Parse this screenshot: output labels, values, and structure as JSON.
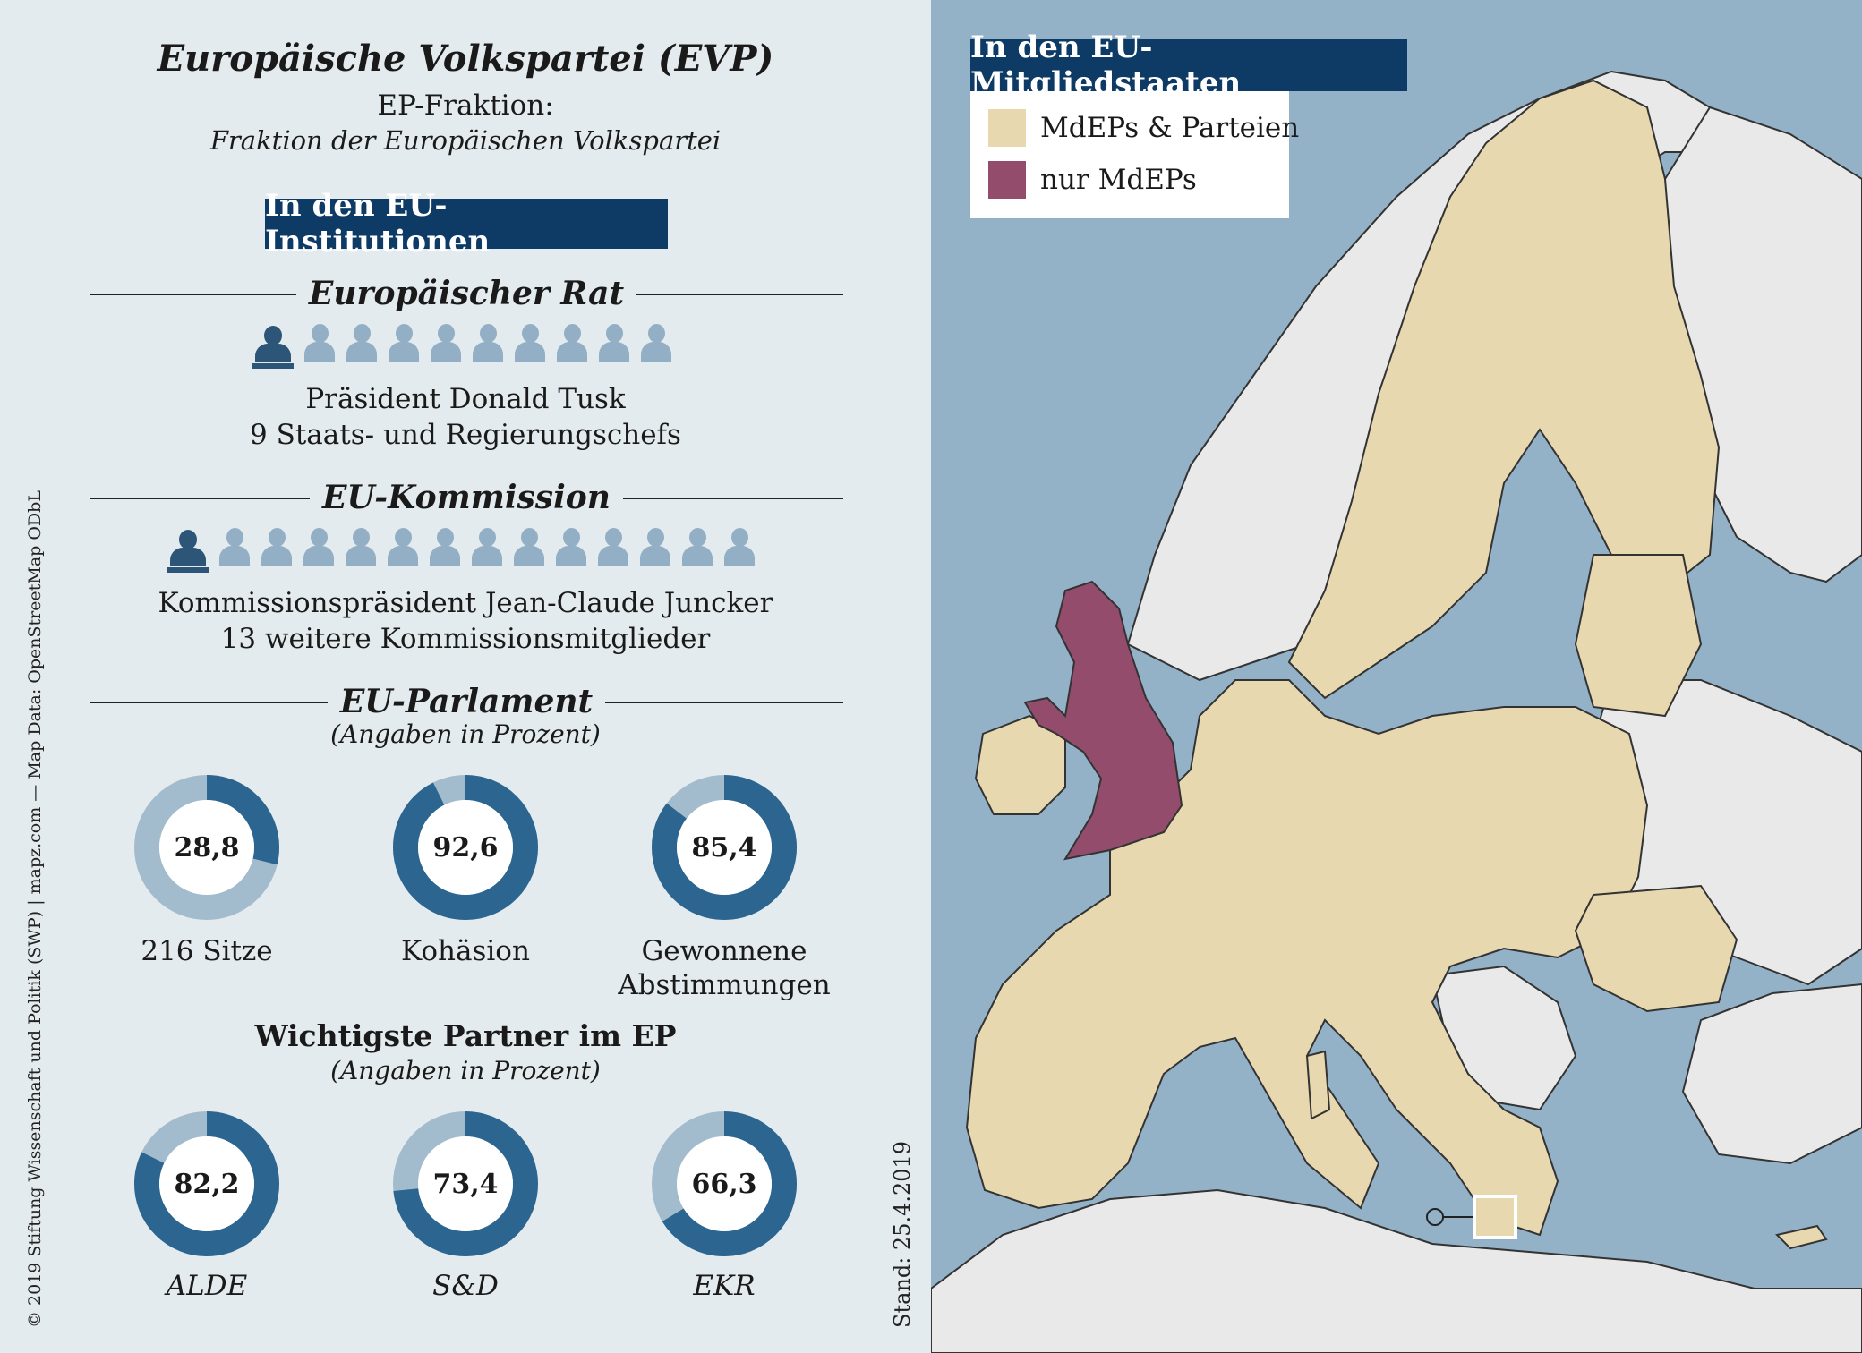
{
  "header": {
    "title": "Europäische Volkspartei (EVP)",
    "fraktion_label": "EP-Fraktion:",
    "fraktion_name": "Fraktion der Europäischen Volkspartei"
  },
  "institutions": {
    "box_label": "In den EU-Institutionen",
    "rat": {
      "heading": "Europäischer Rat",
      "line1": "Präsident Donald Tusk",
      "line2": "9 Staats- und Regierungschefs",
      "main_count": 1,
      "other_count": 9
    },
    "kommission": {
      "heading": "EU-Kommission",
      "line1": "Kommissionspräsident Jean-Claude Juncker",
      "line2": "13 weitere Kommissionsmitglieder",
      "main_count": 1,
      "other_count": 13
    },
    "parlament": {
      "heading": "EU-Parlament",
      "note": "(Angaben in Prozent)",
      "donuts": [
        {
          "value": 28.8,
          "display": "28,8",
          "label": "216 Sitze"
        },
        {
          "value": 92.6,
          "display": "92,6",
          "label": "Kohäsion"
        },
        {
          "value": 85.4,
          "display": "85,4",
          "label": "Gewonnene Abstimmungen"
        }
      ]
    },
    "partner": {
      "heading": "Wichtigste Partner im EP",
      "note": "(Angaben in Prozent)",
      "donuts": [
        {
          "value": 82.2,
          "display": "82,2",
          "label": "ALDE"
        },
        {
          "value": 73.4,
          "display": "73,4",
          "label": "S&D"
        },
        {
          "value": 66.3,
          "display": "66,3",
          "label": "EKR"
        }
      ]
    }
  },
  "credits": {
    "copyright": "© 2019 Stiftung Wissenschaft und Politik (SWP) | mapz.com — Map Data: OpenStreetMap ODbL",
    "stand": "Stand: 25.4.2019"
  },
  "map": {
    "heading": "In den EU-Mitgliedstaaten",
    "legend": [
      {
        "label": "MdEPs & Parteien",
        "color": "#e8d8b0"
      },
      {
        "label": "nur MdEPs",
        "color": "#934c6c"
      }
    ],
    "colors": {
      "sea": "#94b2c7",
      "member": "#e8d8b0",
      "uk": "#934c6c",
      "other": "#e9e9e9",
      "border": "#333333"
    }
  },
  "colors": {
    "donut_dark": "#2b6590",
    "donut_light": "#a3bccd",
    "navy": "#0d3b66",
    "icon_dark": "#2d5577",
    "icon_light": "#93afc5"
  }
}
